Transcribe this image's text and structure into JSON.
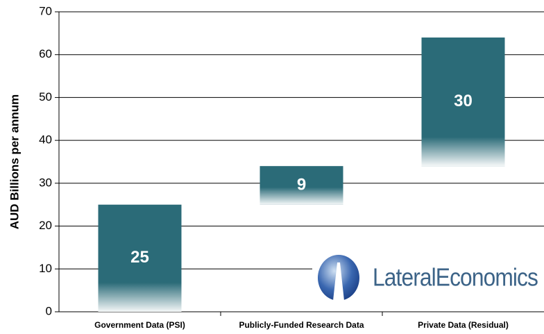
{
  "chart_data": {
    "type": "waterfall",
    "categories": [
      "Government Data (PSI)",
      "Publicly-Funded Research Data",
      "Private Data (Residual)"
    ],
    "values": [
      25,
      9,
      30
    ],
    "color": "#2b6b78",
    "ylim": [
      0,
      70
    ],
    "yticks": [
      0,
      10,
      20,
      30,
      40,
      50,
      60,
      70
    ],
    "ylabel": "AUD Billions per annum",
    "grid": true,
    "logo": "LateralEconomics"
  }
}
